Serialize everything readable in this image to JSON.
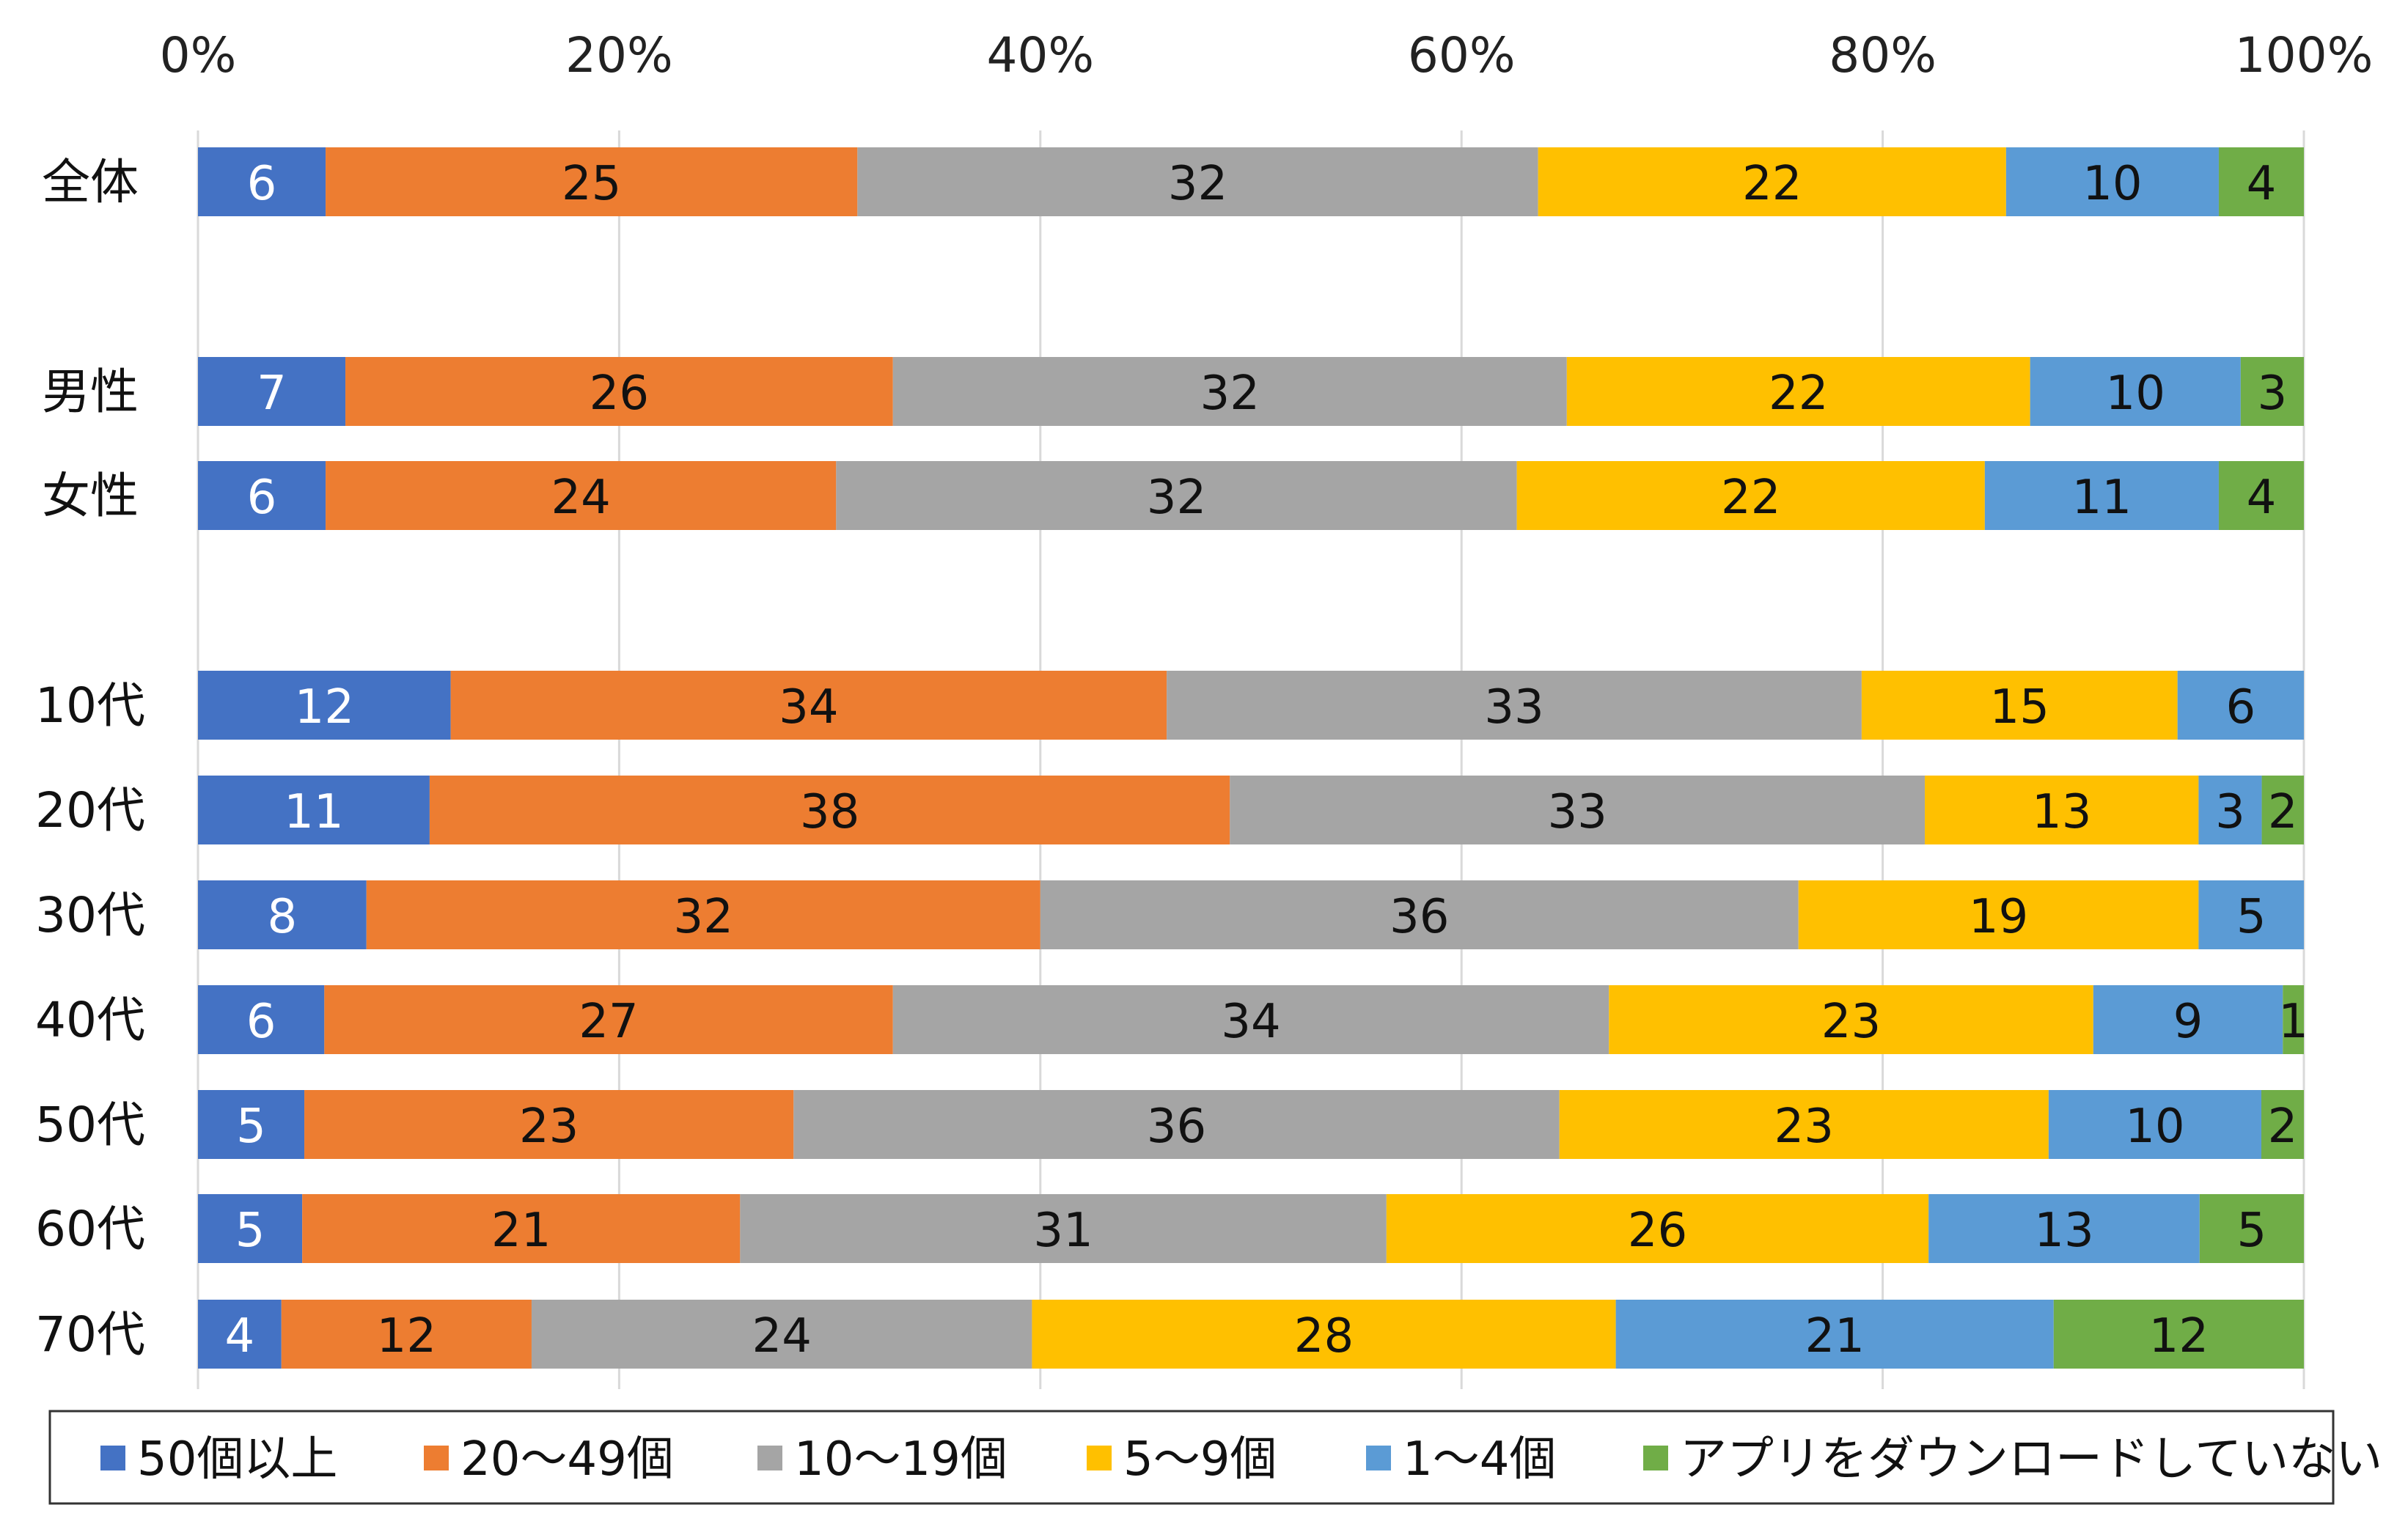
{
  "chart_data": {
    "type": "bar",
    "orientation": "horizontal",
    "stacked": true,
    "percent_stacked": true,
    "categories": [
      "全体",
      "男性",
      "女性",
      "10代",
      "20代",
      "30代",
      "40代",
      "50代",
      "60代",
      "70代"
    ],
    "x_ticks": [
      "0%",
      "20%",
      "40%",
      "60%",
      "80%",
      "100%"
    ],
    "xlim": [
      0,
      100
    ],
    "grid": true,
    "legend_position": "bottom",
    "series": [
      {
        "name": "50個以上",
        "color": "#4472C4",
        "label_color": "#ffffff",
        "values": [
          6,
          7,
          6,
          12,
          11,
          8,
          6,
          5,
          5,
          4
        ]
      },
      {
        "name": "20～49個",
        "color": "#ED7D31",
        "label_color": "#111111",
        "values": [
          25,
          26,
          24,
          34,
          38,
          32,
          27,
          23,
          21,
          12
        ]
      },
      {
        "name": "10～19個",
        "color": "#A5A5A5",
        "label_color": "#111111",
        "values": [
          32,
          32,
          32,
          33,
          33,
          36,
          34,
          36,
          31,
          24
        ]
      },
      {
        "name": "5～9個",
        "color": "#FFC000",
        "label_color": "#111111",
        "values": [
          22,
          22,
          22,
          15,
          13,
          19,
          23,
          23,
          26,
          28
        ]
      },
      {
        "name": "1～4個",
        "color": "#5B9BD5",
        "label_color": "#111111",
        "values": [
          10,
          10,
          11,
          6,
          3,
          5,
          9,
          10,
          13,
          21
        ]
      },
      {
        "name": "アプリをダウンロードしていない",
        "color": "#70AD47",
        "label_color": "#111111",
        "values": [
          4,
          3,
          4,
          null,
          2,
          null,
          1,
          2,
          5,
          12
        ]
      }
    ]
  }
}
